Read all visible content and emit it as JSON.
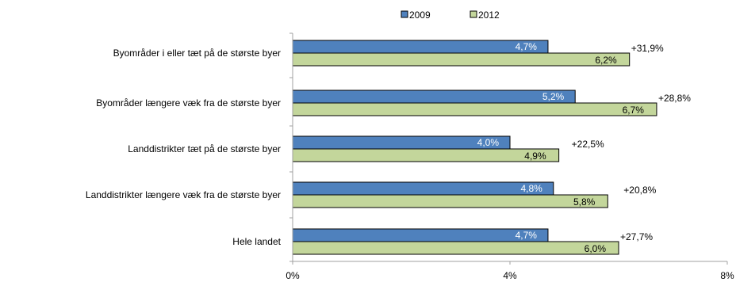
{
  "chart_data": {
    "type": "bar",
    "orientation": "horizontal",
    "categories": [
      "Byområder i eller tæt på de største byer",
      "Byområder længere væk fra de største byer",
      "Landdistrikter tæt på de største byer",
      "Landdistrikter længere væk fra de største byer",
      "Hele landet"
    ],
    "series": [
      {
        "name": "2009",
        "values": [
          4.7,
          5.2,
          4.0,
          4.8,
          4.7
        ],
        "labels": [
          "4,7%",
          "5,2%",
          "4,0%",
          "4,8%",
          "4,7%"
        ],
        "color": "#4f81bd"
      },
      {
        "name": "2012",
        "values": [
          6.2,
          6.7,
          4.9,
          5.8,
          6.0
        ],
        "labels": [
          "6,2%",
          "6,7%",
          "4,9%",
          "5,8%",
          "6,0%"
        ],
        "color": "#c3d69b"
      }
    ],
    "change_labels": [
      "+31,9%",
      "+28,8%",
      "+22,5%",
      "+20,8%",
      "+27,7%"
    ],
    "xlim": [
      0,
      8
    ],
    "x_ticks": [
      0,
      4,
      8
    ],
    "x_tick_labels": [
      "0%",
      "4%",
      "8%"
    ],
    "legend_position": "top",
    "grid": false,
    "title": "",
    "xlabel": "",
    "ylabel": ""
  }
}
